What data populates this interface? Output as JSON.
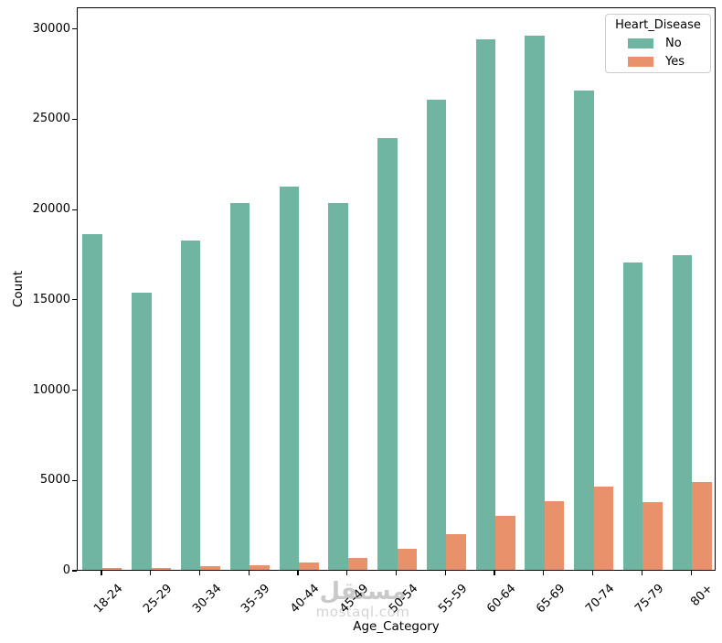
{
  "chart_data": {
    "type": "bar",
    "title": "",
    "xlabel": "Age_Category",
    "ylabel": "Count",
    "categories": [
      "18-24",
      "25-29",
      "30-34",
      "35-39",
      "40-44",
      "45-49",
      "50-54",
      "55-59",
      "60-64",
      "65-69",
      "70-74",
      "75-79",
      "80+"
    ],
    "series": [
      {
        "name": "No",
        "color": "#6fb5a2",
        "values": [
          18600,
          15350,
          18250,
          20300,
          21200,
          20300,
          23900,
          26050,
          29400,
          29600,
          26550,
          17000,
          17450
        ]
      },
      {
        "name": "Yes",
        "color": "#e9916b",
        "values": [
          120,
          100,
          200,
          260,
          430,
          660,
          1150,
          2000,
          3000,
          3800,
          4600,
          3750,
          4850
        ]
      }
    ],
    "ylim": [
      0,
      31200
    ],
    "yticks": [
      0,
      5000,
      10000,
      15000,
      20000,
      25000,
      30000
    ],
    "legend": {
      "title": "Heart_Disease",
      "position": "upper-right"
    },
    "grid": false,
    "background": "#ffffff",
    "axis_color": "#000000"
  },
  "watermark": {
    "arabic": "مستقل",
    "domain": "mostaql.com"
  }
}
